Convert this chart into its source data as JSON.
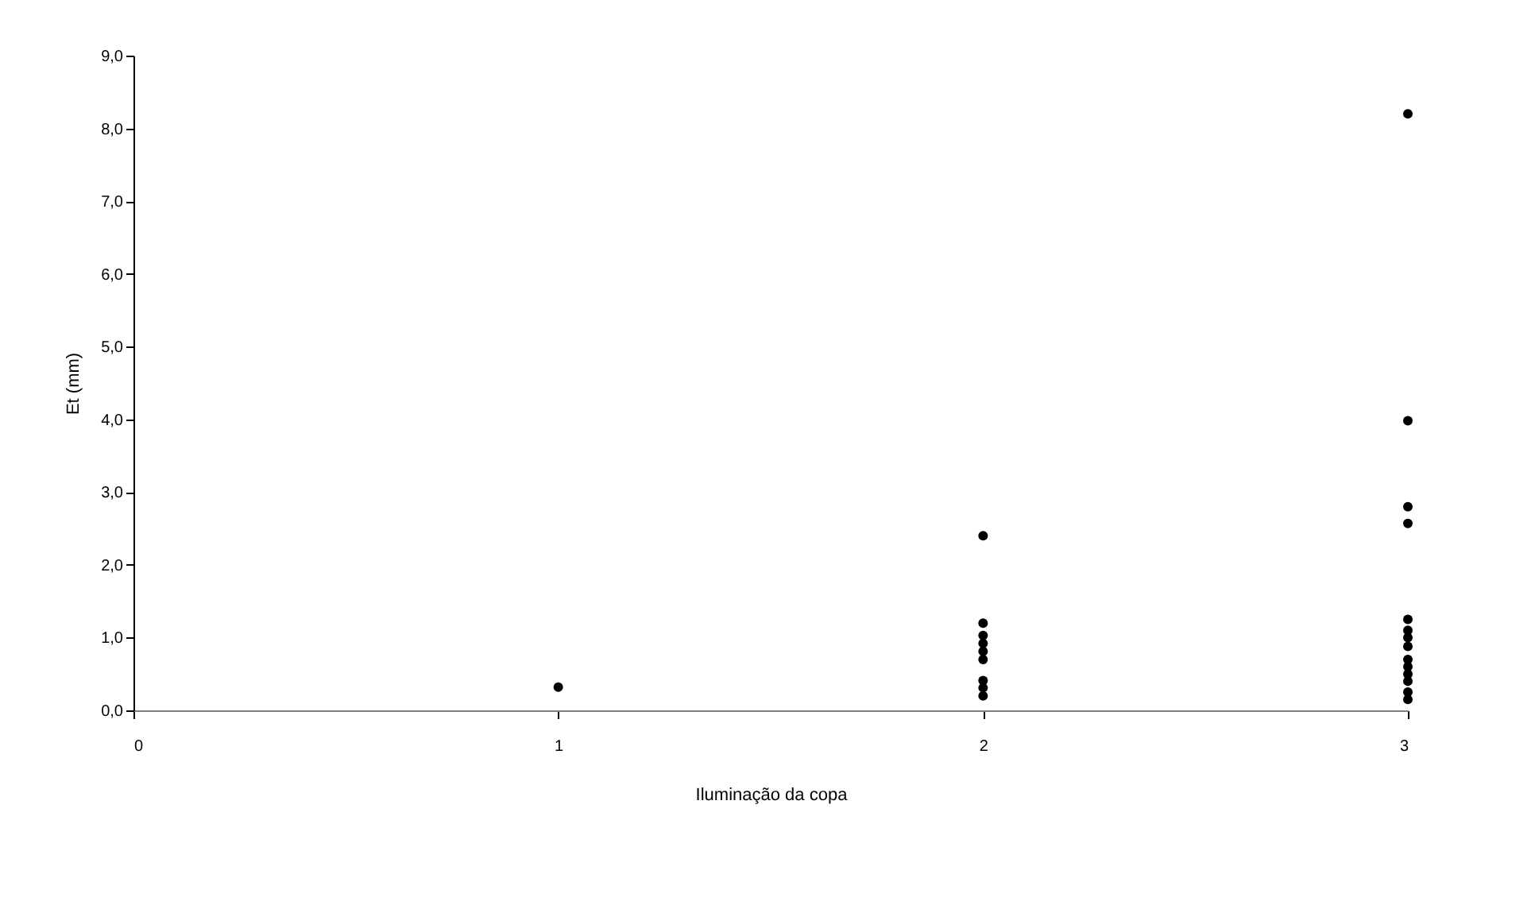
{
  "chart_data": {
    "type": "scatter",
    "xlabel": "Iluminação da copa",
    "ylabel": "Et (mm)",
    "x": [
      1,
      2,
      2,
      2,
      2,
      2,
      2,
      2,
      2,
      2,
      3,
      3,
      3,
      3,
      3,
      3,
      3,
      3,
      3,
      3,
      3,
      3,
      3,
      3
    ],
    "values": [
      0.32,
      2.4,
      1.2,
      1.03,
      0.92,
      0.81,
      0.7,
      0.41,
      0.31,
      0.2,
      8.2,
      3.98,
      2.8,
      2.57,
      1.25,
      1.1,
      1.0,
      0.88,
      0.7,
      0.6,
      0.5,
      0.4,
      0.25,
      0.15
    ],
    "color": "#000000",
    "marker": "circle",
    "xlim": [
      0,
      3
    ],
    "xticks": [
      0,
      1,
      2,
      3
    ],
    "ylim": [
      0,
      9
    ],
    "yticks": [
      {
        "value": 0,
        "label": "0,0"
      },
      {
        "value": 1,
        "label": "1,0"
      },
      {
        "value": 2,
        "label": "2,0"
      },
      {
        "value": 3,
        "label": "3,0"
      },
      {
        "value": 4,
        "label": "4,0"
      },
      {
        "value": 5,
        "label": "5,0"
      },
      {
        "value": 6,
        "label": "6,0"
      },
      {
        "value": 7,
        "label": "7,0"
      },
      {
        "value": 8,
        "label": "8,0"
      },
      {
        "value": 9,
        "label": "9,0"
      }
    ],
    "grid": false
  }
}
